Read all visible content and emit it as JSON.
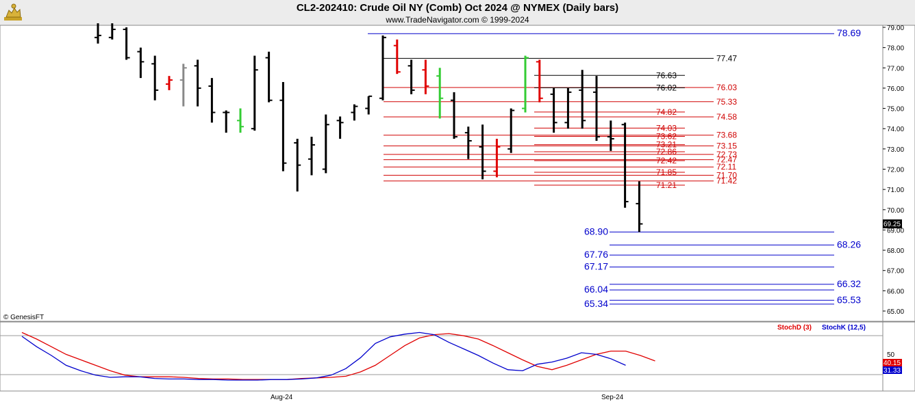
{
  "header": {
    "title": "CL2-202410:  Crude Oil NY (Comb) Oct 2024 @ NYMEX  (Daily bars)",
    "subtitle": "www.TradeNavigator.com © 1999-2024",
    "logo_icon": "gold-bull-logo-icon"
  },
  "watermark": "© GenesisFT",
  "colors": {
    "bar_default": "#000000",
    "bar_red": "#e00000",
    "bar_gray": "#888888",
    "bar_green": "#33cc33",
    "level_black": "#000000",
    "level_red": "#d00000",
    "level_blue": "#0000cc",
    "stoch_d": "#e00000",
    "stoch_k": "#0000cc"
  },
  "chart_data": [
    {
      "type": "bar",
      "title": "CL2-202410:  Crude Oil NY (Comb) Oct 2024 @ NYMEX  (Daily bars)",
      "ylim": [
        64.5,
        79.2
      ],
      "y_ticks": [
        "79.00",
        "78.00",
        "77.00",
        "76.00",
        "75.00",
        "74.00",
        "73.00",
        "72.00",
        "71.00",
        "70.00",
        "69.00",
        "68.00",
        "67.00",
        "66.00",
        "65.00"
      ],
      "last_price": "69.25",
      "x_ticks": [
        "Aug-24",
        "Sep-24"
      ],
      "bars": [
        {
          "h": 79.2,
          "l": 78.2,
          "o": 78.5,
          "c": 78.6,
          "col": "black"
        },
        {
          "h": 79.2,
          "l": 78.4,
          "o": 78.5,
          "c": 78.9,
          "col": "black"
        },
        {
          "h": 79.0,
          "l": 77.4,
          "o": 78.9,
          "c": 77.5,
          "col": "black"
        },
        {
          "h": 78.0,
          "l": 76.5,
          "o": 77.8,
          "c": 77.3,
          "col": "black"
        },
        {
          "h": 77.6,
          "l": 75.4,
          "o": 77.2,
          "c": 75.9,
          "col": "black"
        },
        {
          "h": 76.6,
          "l": 75.9,
          "o": 76.2,
          "c": 76.4,
          "col": "red"
        },
        {
          "h": 77.2,
          "l": 75.1,
          "o": 76.4,
          "c": 77.0,
          "col": "gray"
        },
        {
          "h": 77.4,
          "l": 75.1,
          "o": 77.1,
          "c": 76.0,
          "col": "black"
        },
        {
          "h": 76.5,
          "l": 74.3,
          "o": 76.1,
          "c": 74.8,
          "col": "black"
        },
        {
          "h": 74.9,
          "l": 73.8,
          "o": 74.8,
          "c": 74.8,
          "col": "black"
        },
        {
          "h": 75.0,
          "l": 73.8,
          "o": 74.4,
          "c": 74.1,
          "col": "green"
        },
        {
          "h": 77.6,
          "l": 73.9,
          "o": 74.0,
          "c": 76.9,
          "col": "black"
        },
        {
          "h": 77.8,
          "l": 75.3,
          "o": 77.5,
          "c": 75.4,
          "col": "black"
        },
        {
          "h": 76.3,
          "l": 71.9,
          "o": 75.4,
          "c": 72.3,
          "col": "black"
        },
        {
          "h": 73.5,
          "l": 70.9,
          "o": 73.3,
          "c": 72.2,
          "col": "black"
        },
        {
          "h": 73.6,
          "l": 71.7,
          "o": 72.5,
          "c": 73.2,
          "col": "black"
        },
        {
          "h": 74.7,
          "l": 71.8,
          "o": 72.0,
          "c": 74.2,
          "col": "black"
        },
        {
          "h": 74.6,
          "l": 73.5,
          "o": 74.4,
          "c": 74.3,
          "col": "black"
        },
        {
          "h": 75.2,
          "l": 74.4,
          "o": 74.8,
          "c": 75.1,
          "col": "black"
        },
        {
          "h": 75.6,
          "l": 74.7,
          "o": 75.0,
          "c": 75.6,
          "col": "black"
        },
        {
          "h": 78.6,
          "l": 75.4,
          "o": 75.5,
          "c": 78.5,
          "col": "black"
        },
        {
          "h": 78.4,
          "l": 76.7,
          "o": 78.1,
          "c": 76.8,
          "col": "red"
        },
        {
          "h": 77.4,
          "l": 75.7,
          "o": 77.1,
          "c": 75.9,
          "col": "black"
        },
        {
          "h": 77.4,
          "l": 75.7,
          "o": 76.9,
          "c": 76.1,
          "col": "red"
        },
        {
          "h": 77.0,
          "l": 74.5,
          "o": 76.6,
          "c": 75.5,
          "col": "green"
        },
        {
          "h": 75.8,
          "l": 73.5,
          "o": 75.4,
          "c": 73.6,
          "col": "black"
        },
        {
          "h": 74.1,
          "l": 72.5,
          "o": 73.8,
          "c": 73.4,
          "col": "black"
        },
        {
          "h": 74.2,
          "l": 71.5,
          "o": 73.1,
          "c": 71.9,
          "col": "black"
        },
        {
          "h": 73.5,
          "l": 71.6,
          "o": 71.9,
          "c": 73.1,
          "col": "red"
        },
        {
          "h": 75.0,
          "l": 72.8,
          "o": 73.0,
          "c": 74.9,
          "col": "black"
        },
        {
          "h": 77.6,
          "l": 74.8,
          "o": 75.0,
          "c": 77.5,
          "col": "green"
        },
        {
          "h": 77.4,
          "l": 75.3,
          "o": 77.3,
          "c": 75.5,
          "col": "red"
        },
        {
          "h": 76.0,
          "l": 73.8,
          "o": 75.7,
          "c": 74.3,
          "col": "black"
        },
        {
          "h": 76.0,
          "l": 74.0,
          "o": 74.3,
          "c": 75.8,
          "col": "black"
        },
        {
          "h": 76.9,
          "l": 74.0,
          "o": 75.9,
          "c": 74.4,
          "col": "black"
        },
        {
          "h": 76.6,
          "l": 73.4,
          "o": 75.8,
          "c": 73.6,
          "col": "black"
        },
        {
          "h": 74.4,
          "l": 72.9,
          "o": 73.6,
          "c": 73.5,
          "col": "black"
        },
        {
          "h": 74.3,
          "l": 70.1,
          "o": 74.2,
          "c": 70.4,
          "col": "black"
        },
        {
          "h": 71.4,
          "l": 68.9,
          "o": 70.3,
          "c": 69.3,
          "col": "black"
        }
      ],
      "levels": [
        {
          "value": 78.69,
          "label": "78.69",
          "color": "blue",
          "label_side": "right"
        },
        {
          "value": 77.47,
          "label": "77.47",
          "color": "black",
          "label_side": "right"
        },
        {
          "value": 76.63,
          "label": "76.63",
          "color": "black",
          "label_side": "mid"
        },
        {
          "value": 76.03,
          "label": "76.03",
          "color": "red",
          "label_side": "right"
        },
        {
          "value": 76.02,
          "label": "76.02",
          "color": "black",
          "label_side": "mid"
        },
        {
          "value": 75.33,
          "label": "75.33",
          "color": "red",
          "label_side": "right"
        },
        {
          "value": 74.82,
          "label": "74.82",
          "color": "red",
          "label_side": "mid"
        },
        {
          "value": 74.58,
          "label": "74.58",
          "color": "red",
          "label_side": "right"
        },
        {
          "value": 74.03,
          "label": "74.03",
          "color": "red",
          "label_side": "mid"
        },
        {
          "value": 73.68,
          "label": "73.68",
          "color": "red",
          "label_side": "right"
        },
        {
          "value": 73.62,
          "label": "73.62",
          "color": "red",
          "label_side": "mid"
        },
        {
          "value": 73.21,
          "label": "73.21",
          "color": "red",
          "label_side": "mid"
        },
        {
          "value": 73.15,
          "label": "73.15",
          "color": "red",
          "label_side": "right"
        },
        {
          "value": 72.86,
          "label": "72.86",
          "color": "red",
          "label_side": "mid"
        },
        {
          "value": 72.73,
          "label": "72.73",
          "color": "red",
          "label_side": "right"
        },
        {
          "value": 72.47,
          "label": "72.47",
          "color": "red",
          "label_side": "right"
        },
        {
          "value": 72.42,
          "label": "72.42",
          "color": "red",
          "label_side": "mid"
        },
        {
          "value": 72.11,
          "label": "72.11",
          "color": "red",
          "label_side": "right"
        },
        {
          "value": 71.85,
          "label": "71.85",
          "color": "red",
          "label_side": "mid"
        },
        {
          "value": 71.7,
          "label": "71.70",
          "color": "red",
          "label_side": "right"
        },
        {
          "value": 71.42,
          "label": "71.42",
          "color": "red",
          "label_side": "right"
        },
        {
          "value": 71.21,
          "label": "71.21",
          "color": "red",
          "label_side": "mid"
        },
        {
          "value": 68.9,
          "label": "68.90",
          "color": "blue",
          "label_side": "left"
        },
        {
          "value": 68.26,
          "label": "68.26",
          "color": "blue",
          "label_side": "right"
        },
        {
          "value": 67.76,
          "label": "67.76",
          "color": "blue",
          "label_side": "left"
        },
        {
          "value": 67.17,
          "label": "67.17",
          "color": "blue",
          "label_side": "left"
        },
        {
          "value": 66.32,
          "label": "66.32",
          "color": "blue",
          "label_side": "right"
        },
        {
          "value": 66.04,
          "label": "66.04",
          "color": "blue",
          "label_side": "left"
        },
        {
          "value": 65.53,
          "label": "65.53",
          "color": "blue",
          "label_side": "right"
        },
        {
          "value": 65.34,
          "label": "65.34",
          "color": "blue",
          "label_side": "left"
        }
      ]
    },
    {
      "type": "line",
      "ylim": [
        0,
        100
      ],
      "y_ticks": [
        "50"
      ],
      "legend": [
        "StochD (3)",
        "StochK (12,5)"
      ],
      "last_values": {
        "stoch_d": "40.15",
        "stoch_k": "31.33"
      },
      "series": [
        {
          "name": "StochD (3)",
          "color": "red",
          "values": [
            92,
            80,
            66,
            52,
            42,
            32,
            22,
            14,
            11,
            11,
            11,
            10,
            8,
            7,
            7,
            6,
            6,
            6,
            6,
            8,
            9,
            10,
            12,
            20,
            32,
            50,
            68,
            82,
            88,
            90,
            86,
            80,
            68,
            55,
            42,
            30,
            24,
            32,
            42,
            52,
            58,
            58,
            50,
            40
          ]
        },
        {
          "name": "StochK (12,5)",
          "color": "blue",
          "values": [
            85,
            66,
            50,
            32,
            22,
            14,
            10,
            11,
            11,
            8,
            7,
            7,
            6,
            6,
            5,
            5,
            5,
            6,
            6,
            7,
            9,
            14,
            26,
            46,
            72,
            84,
            89,
            92,
            88,
            74,
            62,
            50,
            36,
            24,
            22,
            34,
            38,
            45,
            55,
            52,
            44,
            32
          ]
        }
      ]
    }
  ]
}
